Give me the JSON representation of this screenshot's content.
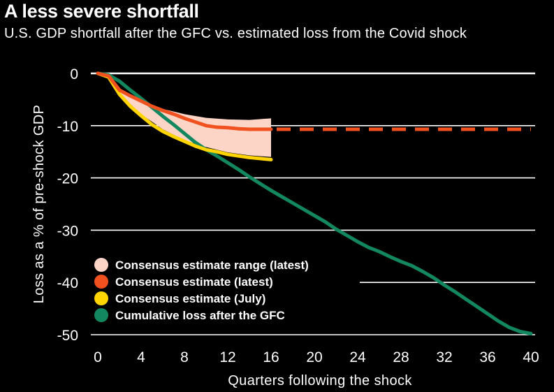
{
  "title": "A less severe shortfall",
  "subtitle": "U.S. GDP shortfall after the GFC vs. estimated loss from the Covid shock",
  "chart_data": {
    "type": "line",
    "xlabel": "Quarters following the shock",
    "ylabel": "Loss as a % of pre-shock GDP",
    "xlim": [
      0,
      40
    ],
    "ylim": [
      -50,
      0
    ],
    "xticks": [
      0,
      4,
      8,
      12,
      16,
      20,
      24,
      28,
      32,
      36,
      40
    ],
    "yticks": [
      0,
      -10,
      -20,
      -30,
      -40,
      -50
    ],
    "grid": "horizontal",
    "legend_position": "lower-left",
    "series": [
      {
        "name": "Consensus estimate range (latest)",
        "type": "band",
        "color": "#fdd5c6",
        "x": [
          2,
          4,
          6,
          8,
          10,
          12,
          14,
          16
        ],
        "upper": [
          -3.3,
          -5.2,
          -6.8,
          -7.8,
          -8.5,
          -8.8,
          -8.9,
          -8.6
        ],
        "lower": [
          -3.9,
          -7.8,
          -10.7,
          -12.8,
          -14.1,
          -15.1,
          -15.7,
          -16.0
        ]
      },
      {
        "name": "Consensus estimate (latest)",
        "type": "line",
        "color": "#f0511e",
        "x": [
          0,
          1,
          2,
          3,
          4,
          5,
          6,
          7,
          8,
          9,
          10,
          11,
          12,
          13,
          14,
          15,
          16
        ],
        "values": [
          0,
          -0.5,
          -3.2,
          -4.3,
          -5.3,
          -6.3,
          -7.1,
          -7.8,
          -8.6,
          -9.3,
          -10.0,
          -10.3,
          -10.4,
          -10.6,
          -10.7,
          -10.7,
          -10.7
        ],
        "projection": {
          "style": "dashed",
          "x": [
            16,
            40
          ],
          "values": [
            -10.7,
            -10.7
          ]
        }
      },
      {
        "name": "Consensus estimate (July)",
        "type": "line",
        "color": "#ffd400",
        "x": [
          0,
          1,
          2,
          3,
          4,
          5,
          6,
          7,
          8,
          9,
          10,
          11,
          12,
          13,
          14,
          15,
          16
        ],
        "values": [
          0,
          -0.7,
          -4.0,
          -6.3,
          -8.1,
          -9.8,
          -11.1,
          -12.1,
          -13.0,
          -13.9,
          -14.6,
          -15.0,
          -15.5,
          -15.8,
          -16.1,
          -16.3,
          -16.5
        ]
      },
      {
        "name": "Cumulative loss after the GFC",
        "type": "line",
        "color": "#13875f",
        "x": [
          0,
          1,
          2,
          3,
          4,
          5,
          6,
          7,
          8,
          9,
          10,
          11,
          12,
          13,
          14,
          15,
          16,
          17,
          18,
          19,
          20,
          21,
          22,
          23,
          24,
          25,
          26,
          27,
          28,
          29,
          30,
          31,
          32,
          33,
          34,
          35,
          36,
          37,
          38,
          39,
          40
        ],
        "values": [
          0,
          -0.3,
          -1.5,
          -3.2,
          -4.8,
          -6.5,
          -8.2,
          -9.8,
          -11.5,
          -13.2,
          -14.6,
          -15.8,
          -17.1,
          -18.4,
          -19.8,
          -21.1,
          -22.4,
          -23.6,
          -24.8,
          -26.0,
          -27.2,
          -28.4,
          -29.8,
          -31.0,
          -32.2,
          -33.3,
          -34.1,
          -35.1,
          -36.0,
          -36.8,
          -37.9,
          -39.1,
          -40.5,
          -41.8,
          -43.2,
          -44.6,
          -46.0,
          -47.4,
          -48.6,
          -49.4,
          -49.8
        ]
      }
    ]
  }
}
